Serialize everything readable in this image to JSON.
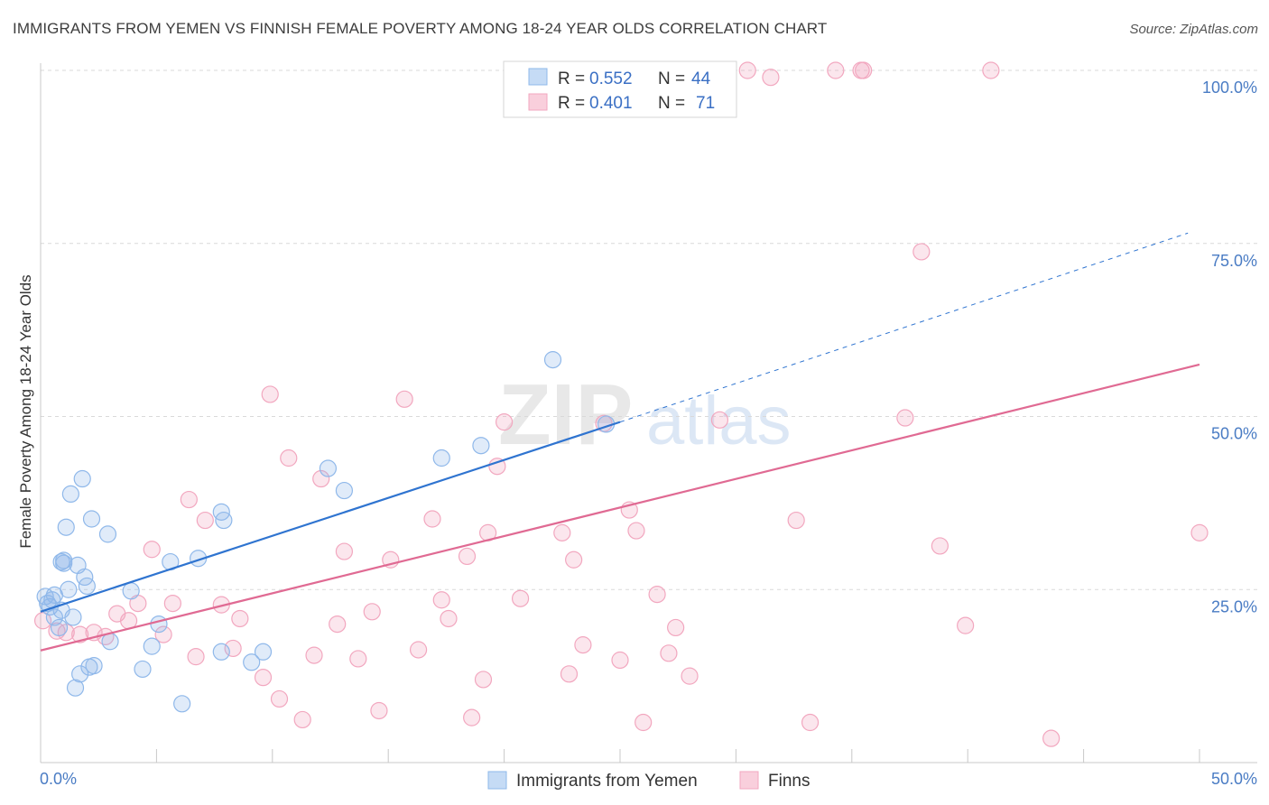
{
  "title": "IMMIGRANTS FROM YEMEN VS FINNISH FEMALE POVERTY AMONG 18-24 YEAR OLDS CORRELATION CHART",
  "source": "Source: ZipAtlas.com",
  "watermark": {
    "zip": "ZIP",
    "atlas": "atlas"
  },
  "colors": {
    "blue": "#8fb8ea",
    "blue_line": "#2f74d0",
    "pink": "#f2a7bf",
    "pink_line": "#e06a93",
    "grid": "#d9d9d9",
    "tick_label": "#4a7cc4"
  },
  "legend": {
    "series": [
      {
        "r_label": "R =",
        "r_value": "0.552",
        "n_label": "N =",
        "n_value": "44"
      },
      {
        "r_label": "R =",
        "r_value": "0.401",
        "n_label": "N =",
        "n_value": "71"
      }
    ]
  },
  "bottom_legend": [
    "Immigrants from Yemen",
    "Finns"
  ],
  "chart_data": {
    "type": "scatter",
    "title": "IMMIGRANTS FROM YEMEN VS FINNISH FEMALE POVERTY AMONG 18-24 YEAR OLDS CORRELATION CHART",
    "xlabel": "",
    "ylabel": "Female Poverty Among 18-24 Year Olds",
    "xlim": [
      0,
      50
    ],
    "ylim": [
      0,
      100
    ],
    "x_tick_labels": [
      "0.0%",
      "50.0%"
    ],
    "y_ticks": [
      25,
      50,
      75,
      100
    ],
    "y_tick_labels": [
      "25.0%",
      "50.0%",
      "75.0%",
      "100.0%"
    ],
    "grid": true,
    "series": [
      {
        "name": "Immigrants from Yemen",
        "r": 0.552,
        "n": 44,
        "trend": {
          "x0": 0,
          "y0": 21.8,
          "x1": 25,
          "y1": 49.2,
          "dashed_to_x": 49.5,
          "dashed_to_y": 76.5
        },
        "points": [
          [
            0.2,
            24
          ],
          [
            0.3,
            23
          ],
          [
            0.4,
            22.5
          ],
          [
            0.5,
            23.5
          ],
          [
            0.6,
            24.2
          ],
          [
            0.8,
            19.5
          ],
          [
            0.9,
            22
          ],
          [
            0.6,
            21
          ],
          [
            0.9,
            29
          ],
          [
            1.0,
            29.2
          ],
          [
            1.0,
            28.8
          ],
          [
            1.1,
            34
          ],
          [
            1.2,
            25
          ],
          [
            1.3,
            38.8
          ],
          [
            1.4,
            21
          ],
          [
            1.5,
            10.8
          ],
          [
            1.6,
            28.5
          ],
          [
            1.7,
            12.8
          ],
          [
            1.8,
            41
          ],
          [
            1.9,
            26.8
          ],
          [
            2.0,
            25.5
          ],
          [
            2.1,
            13.8
          ],
          [
            2.2,
            35.2
          ],
          [
            2.3,
            14
          ],
          [
            2.9,
            33
          ],
          [
            3.0,
            17.5
          ],
          [
            3.9,
            24.8
          ],
          [
            4.4,
            13.5
          ],
          [
            4.8,
            16.8
          ],
          [
            5.1,
            20
          ],
          [
            5.6,
            29
          ],
          [
            6.1,
            8.5
          ],
          [
            6.8,
            29.5
          ],
          [
            7.8,
            16
          ],
          [
            7.8,
            36.2
          ],
          [
            7.9,
            35
          ],
          [
            9.1,
            14.5
          ],
          [
            9.6,
            16
          ],
          [
            12.4,
            42.5
          ],
          [
            13.1,
            39.3
          ],
          [
            17.3,
            44
          ],
          [
            19.0,
            45.8
          ],
          [
            22.1,
            58.2
          ],
          [
            24.4,
            48.9
          ]
        ]
      },
      {
        "name": "Finns",
        "r": 0.401,
        "n": 71,
        "trend": {
          "x0": 0,
          "y0": 16.2,
          "x1": 50,
          "y1": 57.5
        },
        "points": [
          [
            0.1,
            20.5
          ],
          [
            0.7,
            19
          ],
          [
            1.1,
            18.8
          ],
          [
            1.7,
            18.5
          ],
          [
            2.3,
            18.8
          ],
          [
            2.8,
            18.2
          ],
          [
            3.3,
            21.5
          ],
          [
            3.8,
            20.5
          ],
          [
            4.2,
            23
          ],
          [
            4.8,
            30.8
          ],
          [
            5.3,
            18.5
          ],
          [
            5.7,
            23
          ],
          [
            6.4,
            38
          ],
          [
            6.7,
            15.3
          ],
          [
            7.1,
            35
          ],
          [
            7.8,
            22.8
          ],
          [
            8.3,
            16.5
          ],
          [
            8.6,
            20.8
          ],
          [
            9.6,
            12.3
          ],
          [
            9.9,
            53.2
          ],
          [
            10.3,
            9.2
          ],
          [
            10.7,
            44
          ],
          [
            11.3,
            6.2
          ],
          [
            11.8,
            15.5
          ],
          [
            12.1,
            41
          ],
          [
            12.8,
            20
          ],
          [
            13.1,
            30.5
          ],
          [
            13.7,
            15
          ],
          [
            14.3,
            21.8
          ],
          [
            14.6,
            7.5
          ],
          [
            15.1,
            29.3
          ],
          [
            15.7,
            52.5
          ],
          [
            16.3,
            16.3
          ],
          [
            16.9,
            35.2
          ],
          [
            17.3,
            23.5
          ],
          [
            17.6,
            20.8
          ],
          [
            18.4,
            29.8
          ],
          [
            18.6,
            6.5
          ],
          [
            19.1,
            12
          ],
          [
            19.7,
            42.8
          ],
          [
            19.3,
            33.2
          ],
          [
            20.0,
            49.2
          ],
          [
            20.7,
            23.7
          ],
          [
            22.5,
            33.2
          ],
          [
            22.8,
            12.8
          ],
          [
            23.0,
            29.3
          ],
          [
            23.4,
            17
          ],
          [
            24.3,
            49
          ],
          [
            25.0,
            14.8
          ],
          [
            25.4,
            36.5
          ],
          [
            25.7,
            33.5
          ],
          [
            26.0,
            5.8
          ],
          [
            26.6,
            24.3
          ],
          [
            27.1,
            15.8
          ],
          [
            27.4,
            19.5
          ],
          [
            28.0,
            12.5
          ],
          [
            29.3,
            49.5
          ],
          [
            30.5,
            100
          ],
          [
            32.6,
            35
          ],
          [
            33.2,
            5.8
          ],
          [
            34.3,
            100
          ],
          [
            35.4,
            100
          ],
          [
            35.5,
            100
          ],
          [
            37.3,
            49.8
          ],
          [
            38.0,
            73.8
          ],
          [
            38.8,
            31.3
          ],
          [
            39.9,
            19.8
          ],
          [
            41.0,
            100
          ],
          [
            43.6,
            3.5
          ],
          [
            50.0,
            33.2
          ],
          [
            31.5,
            99
          ]
        ]
      }
    ]
  }
}
